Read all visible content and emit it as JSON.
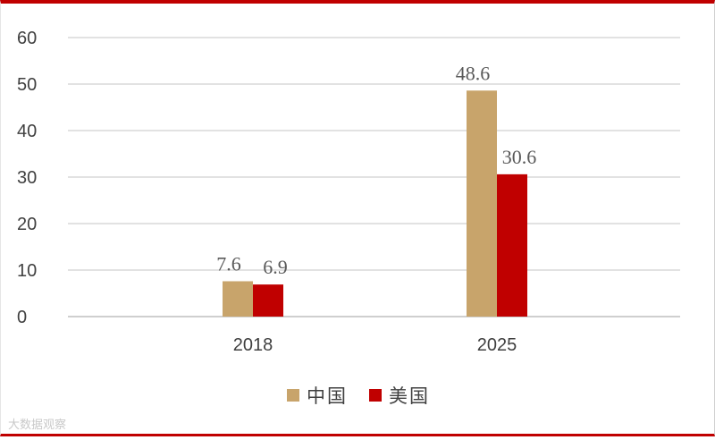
{
  "chart_data": {
    "type": "bar",
    "categories": [
      "2018",
      "2025"
    ],
    "series": [
      {
        "name": "中国",
        "values": [
          7.6,
          48.6
        ],
        "color": "#c8a46b"
      },
      {
        "name": "美国",
        "values": [
          6.9,
          30.6
        ],
        "color": "#c00000"
      }
    ],
    "ylim": [
      0,
      60
    ],
    "yticks": [
      0,
      10,
      20,
      30,
      40,
      50,
      60
    ],
    "grid": true,
    "legend": "bottom-center"
  },
  "watermark": "大数据观察"
}
